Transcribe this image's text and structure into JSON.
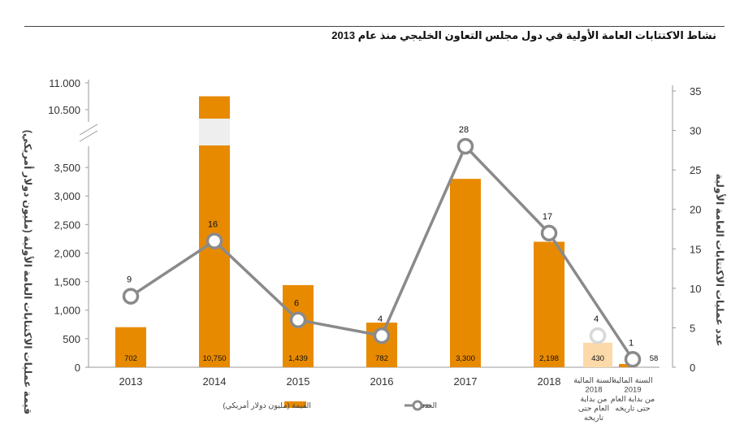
{
  "page": {
    "title": "نشاط الاكتتابات العامة الأولية في دول مجلس التعاون الخليجي منذ عام 2013"
  },
  "chart_data": {
    "type": "bar",
    "title": "نشاط الاكتتابات العامة الأولية في دول مجلس التعاون الخليجي منذ عام 2013",
    "categories": [
      "2013",
      "2014",
      "2015",
      "2016",
      "2017",
      "2018",
      "السنة المالية 2018 من بداية العام حتى تاريخه",
      "السنة المالية 2019 من بداية العام حتى تاريخه"
    ],
    "category_lines": [
      [
        "2013"
      ],
      [
        "2014"
      ],
      [
        "2015"
      ],
      [
        "2016"
      ],
      [
        "2017"
      ],
      [
        "2018"
      ],
      [
        "السنة المالية",
        "2018",
        "من بداية",
        "العام حتى",
        "تاريخه"
      ],
      [
        "السنة المالية",
        "2019",
        "من بداية العام",
        "حتى تاريخه"
      ]
    ],
    "series": [
      {
        "name": "القيمة (مليون دولار أمريكي)",
        "type": "bar",
        "axis": "left",
        "values": [
          702,
          10750,
          1439,
          782,
          3300,
          2198,
          430,
          58
        ],
        "labels": [
          "702",
          "10,750",
          "1,439",
          "782",
          "3,300",
          "2,198",
          "430",
          "58"
        ]
      },
      {
        "name": "العدد",
        "type": "line",
        "axis": "right",
        "values": [
          9,
          16,
          6,
          4,
          28,
          17,
          4,
          1
        ]
      }
    ],
    "left_axis": {
      "label": "قيمة عمليات الاكتتابات العامة الأولية (مليون دولار أمريكي)",
      "ticks_lower": [
        "0",
        "500",
        "1,000",
        "1,500",
        "2,000",
        "2,500",
        "3,000",
        "3,500"
      ],
      "ticks_upper": [
        "10.500",
        "11.000"
      ],
      "broken": true,
      "lower_range": [
        0,
        3800
      ],
      "upper_range": [
        10300,
        11000
      ]
    },
    "right_axis": {
      "label": "عدد عمليات الاكتتابات العامة الأولية",
      "ticks": [
        "0",
        "5",
        "10",
        "15",
        "20",
        "25",
        "30",
        "35"
      ],
      "range": [
        0,
        35
      ]
    },
    "legend": {
      "position": "bottom",
      "items": [
        {
          "label": "القيمة (مليون دولار أمريكي)",
          "kind": "bar"
        },
        {
          "label": "العدد",
          "kind": "line"
        }
      ]
    },
    "colors": {
      "bar": "#e88a00",
      "bar_partial": "#fbd9a8",
      "line": "#8a8a8a",
      "marker_fill": "#ffffff",
      "marker_partial": "#d8d8d8"
    },
    "grid": false
  }
}
